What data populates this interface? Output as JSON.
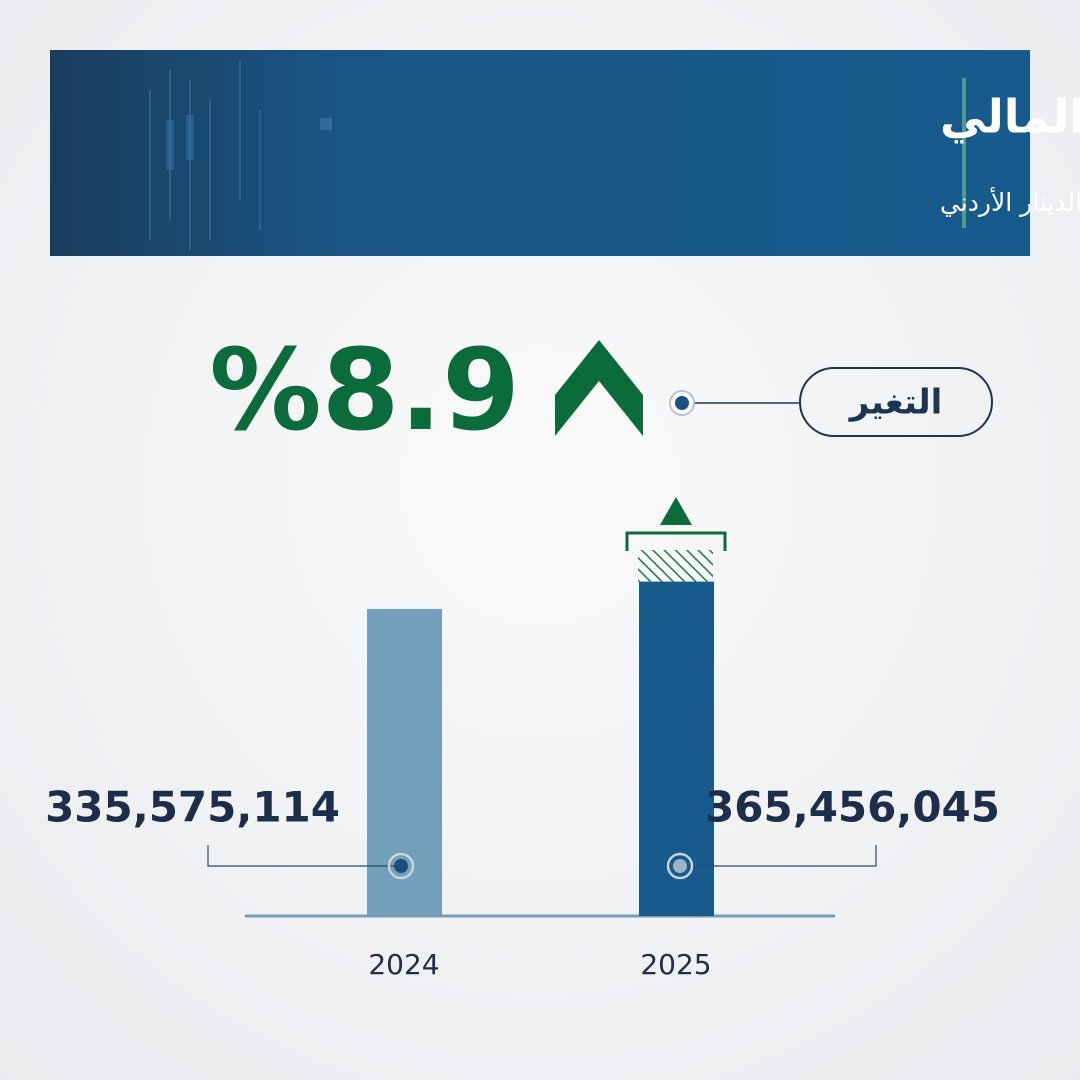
{
  "chart_data": {
    "type": "bar",
    "title": "القطاع المالي",
    "subtitle": "صافي الربح بعد الضريبة (مساهمي الشركة) بالدينار الأردني",
    "change": {
      "label": "التغير",
      "value": "%8.9"
    },
    "categories": [
      "2024",
      "2025"
    ],
    "values": [
      335575114,
      365456045
    ],
    "value_labels": [
      "335,575,114",
      "365,456,045"
    ],
    "colors": [
      "#739fbb",
      "#175a8c"
    ],
    "ylim": [
      0,
      400000000
    ]
  }
}
